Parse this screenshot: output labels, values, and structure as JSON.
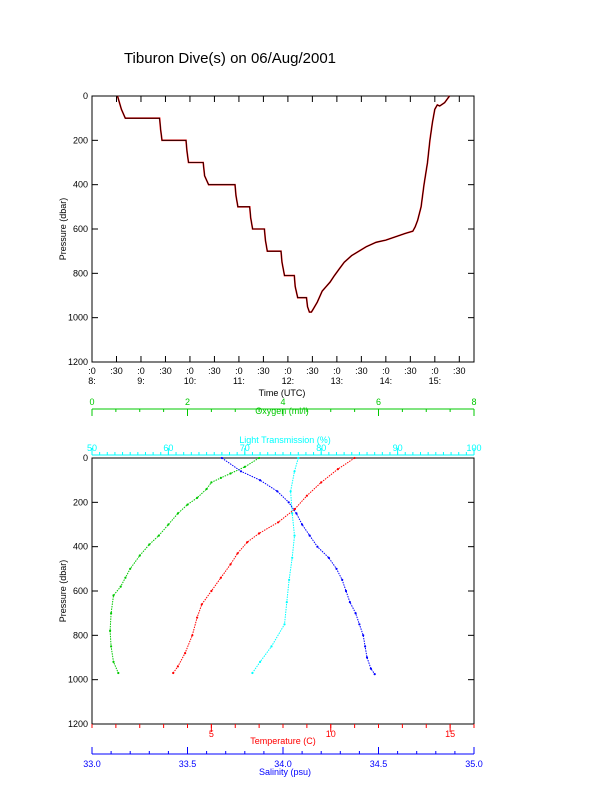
{
  "title": "Tiburon Dive(s) on 06/Aug/2001",
  "top_chart": {
    "xlabel": "Time (UTC)",
    "ylabel": "Pressure (dbar)"
  },
  "bottom_chart": {
    "ylabel": "Pressure (dbar)",
    "oxygen_label": "Oxygen (ml/l)",
    "light_label": "Light Transmission (%)",
    "temp_label": "Temperature (C)",
    "salinity_label": "Salinity (psu)"
  },
  "colors": {
    "axis": "#000000",
    "trace": "#000000",
    "trace_red": "#ff0000",
    "oxygen": "#00c800",
    "light": "#00ffff",
    "temperature": "#ff0000",
    "salinity": "#0000ff"
  },
  "chart_data": [
    {
      "type": "line",
      "title": "Tiburon Dive(s) on 06/Aug/2001",
      "xlabel": "Time (UTC)",
      "ylabel": "Pressure (dbar)",
      "x_unit": "hours UTC",
      "xlim": [
        8.0,
        15.8
      ],
      "ylim": [
        1200,
        0
      ],
      "y_reversed": true,
      "y_ticks": [
        0,
        200,
        400,
        600,
        800,
        1000,
        1200
      ],
      "x_ticks": [
        {
          "minor": ":0",
          "major": "8:"
        },
        {
          "minor": ":30",
          "major": ""
        },
        {
          "minor": ":0",
          "major": "9:"
        },
        {
          "minor": ":30",
          "major": ""
        },
        {
          "minor": ":0",
          "major": "10:"
        },
        {
          "minor": ":30",
          "major": ""
        },
        {
          "minor": ":0",
          "major": "11:"
        },
        {
          "minor": ":30",
          "major": ""
        },
        {
          "minor": ":0",
          "major": "12:"
        },
        {
          "minor": ":30",
          "major": ""
        },
        {
          "minor": ":0",
          "major": "13:"
        },
        {
          "minor": ":30",
          "major": ""
        },
        {
          "minor": ":0",
          "major": "14:"
        },
        {
          "minor": ":30",
          "major": ""
        },
        {
          "minor": ":0",
          "major": "15:"
        },
        {
          "minor": ":30",
          "major": ""
        }
      ],
      "series": [
        {
          "x": [
            8.52,
            8.6,
            8.68,
            9.38,
            9.4,
            9.43,
            9.92,
            9.94,
            9.97,
            10.27,
            10.3,
            10.38,
            10.92,
            10.94,
            10.98,
            11.22,
            11.24,
            11.28,
            11.52,
            11.54,
            11.58,
            11.86,
            11.88,
            11.93,
            12.13,
            12.15,
            12.2,
            12.38,
            12.4,
            12.44,
            12.48,
            12.52,
            12.6,
            12.7,
            12.78,
            12.86,
            12.95,
            13.05,
            13.15,
            13.3,
            13.45,
            13.6,
            13.8,
            14.0,
            14.2,
            14.4,
            14.55,
            14.6,
            14.65,
            14.72,
            14.78,
            14.85,
            14.9,
            14.95,
            15.0,
            15.05,
            15.1,
            15.2,
            15.3
          ],
          "y": [
            0,
            60,
            100,
            100,
            150,
            200,
            200,
            250,
            300,
            300,
            360,
            400,
            400,
            450,
            500,
            500,
            550,
            600,
            600,
            650,
            700,
            700,
            750,
            810,
            810,
            860,
            910,
            910,
            950,
            975,
            975,
            960,
            930,
            880,
            860,
            840,
            810,
            780,
            750,
            720,
            700,
            680,
            660,
            650,
            635,
            620,
            610,
            590,
            560,
            500,
            400,
            300,
            200,
            120,
            60,
            40,
            45,
            30,
            0
          ]
        }
      ]
    },
    {
      "type": "scatter",
      "ylabel": "Pressure (dbar)",
      "ylim": [
        1200,
        0
      ],
      "y_reversed": true,
      "y_ticks": [
        0,
        200,
        400,
        600,
        800,
        1000,
        1200
      ],
      "axes": {
        "oxygen": {
          "label": "Oxygen (ml/l)",
          "lim": [
            0,
            8
          ],
          "ticks": [
            0,
            2,
            4,
            6,
            8
          ],
          "position": "top"
        },
        "light": {
          "label": "Light Transmission (%)",
          "lim": [
            50,
            100
          ],
          "ticks": [
            50,
            60,
            70,
            80,
            90,
            100
          ],
          "position": "top"
        },
        "temperature": {
          "label": "Temperature (C)",
          "lim": [
            0,
            16
          ],
          "ticks": [
            5,
            10,
            15
          ],
          "position": "bottom"
        },
        "salinity": {
          "label": "Salinity (psu)",
          "lim": [
            33.0,
            35.0
          ],
          "ticks": [
            33.0,
            33.5,
            34.0,
            34.5,
            35.0
          ],
          "position": "bottom"
        }
      },
      "series": [
        {
          "name": "Oxygen (ml/l)",
          "axis": "oxygen",
          "values": [
            [
              3.5,
              0
            ],
            [
              3.2,
              40
            ],
            [
              2.9,
              70
            ],
            [
              2.7,
              90
            ],
            [
              2.5,
              110
            ],
            [
              2.4,
              140
            ],
            [
              2.2,
              180
            ],
            [
              2.0,
              210
            ],
            [
              1.8,
              250
            ],
            [
              1.6,
              300
            ],
            [
              1.4,
              350
            ],
            [
              1.2,
              390
            ],
            [
              1.0,
              440
            ],
            [
              0.8,
              500
            ],
            [
              0.7,
              540
            ],
            [
              0.6,
              580
            ],
            [
              0.45,
              620
            ],
            [
              0.4,
              700
            ],
            [
              0.38,
              780
            ],
            [
              0.4,
              850
            ],
            [
              0.45,
              920
            ],
            [
              0.55,
              970
            ]
          ]
        },
        {
          "name": "Light Transmission (%)",
          "axis": "light",
          "values": [
            [
              77,
              0
            ],
            [
              76.5,
              60
            ],
            [
              76,
              150
            ],
            [
              76.2,
              250
            ],
            [
              76.5,
              350
            ],
            [
              76.2,
              450
            ],
            [
              75.8,
              550
            ],
            [
              75.5,
              650
            ],
            [
              75.2,
              750
            ],
            [
              73.5,
              850
            ],
            [
              72,
              920
            ],
            [
              71,
              970
            ]
          ]
        },
        {
          "name": "Temperature (C)",
          "axis": "temperature",
          "values": [
            [
              11.0,
              0
            ],
            [
              10.3,
              50
            ],
            [
              9.6,
              110
            ],
            [
              9.0,
              170
            ],
            [
              8.5,
              230
            ],
            [
              7.8,
              290
            ],
            [
              7.0,
              340
            ],
            [
              6.5,
              380
            ],
            [
              6.1,
              430
            ],
            [
              5.8,
              480
            ],
            [
              5.4,
              540
            ],
            [
              5.0,
              600
            ],
            [
              4.6,
              660
            ],
            [
              4.4,
              720
            ],
            [
              4.2,
              800
            ],
            [
              3.9,
              880
            ],
            [
              3.6,
              940
            ],
            [
              3.4,
              970
            ]
          ]
        },
        {
          "name": "Salinity (psu)",
          "axis": "salinity",
          "values": [
            [
              33.68,
              0
            ],
            [
              33.78,
              60
            ],
            [
              33.88,
              100
            ],
            [
              33.97,
              150
            ],
            [
              34.03,
              200
            ],
            [
              34.07,
              250
            ],
            [
              34.1,
              300
            ],
            [
              34.14,
              350
            ],
            [
              34.18,
              400
            ],
            [
              34.24,
              450
            ],
            [
              34.28,
              500
            ],
            [
              34.31,
              550
            ],
            [
              34.33,
              600
            ],
            [
              34.35,
              650
            ],
            [
              34.38,
              700
            ],
            [
              34.4,
              750
            ],
            [
              34.42,
              800
            ],
            [
              34.43,
              850
            ],
            [
              34.44,
              900
            ],
            [
              34.46,
              950
            ],
            [
              34.48,
              975
            ]
          ]
        }
      ]
    }
  ]
}
